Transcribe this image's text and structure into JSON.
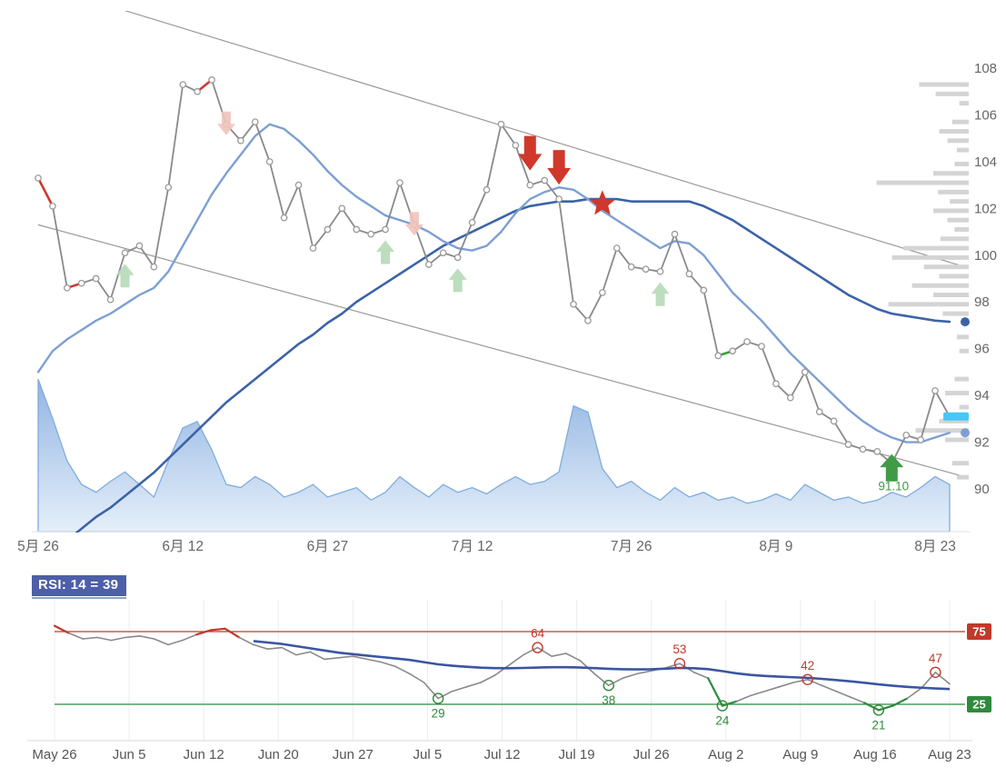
{
  "colors": {
    "price_line": "#8a8a8a",
    "fast_ma": "#7d9fd3",
    "slow_ma": "#3c63a8",
    "area_stroke": "#79a8dc",
    "area_fill_top": "#84aadf",
    "area_fill_bottom": "#e4effa",
    "up_signal": "#3f9b44",
    "down_signal": "#d0382b",
    "light_up": "#b5d9b7",
    "light_down": "#f0c3bd",
    "profile_bar": "#d4d4d4",
    "channel": "#9a9a9a",
    "axis_text": "#666666",
    "overbought": "#c0392b",
    "oversold": "#2e8b3d",
    "rsi_line": "#8a8a8a",
    "rsi_ma": "#3b55a0",
    "price_tag": "#45c8f5",
    "badge_bg": "#4d5fa8"
  },
  "chart_data": [
    {
      "type": "line",
      "name": "price-chart-with-signals",
      "title": "",
      "ylabel": "",
      "ylim": [
        88.2,
        110.3
      ],
      "y_ticks": [
        90,
        92,
        94,
        96,
        98,
        100,
        102,
        104,
        106,
        108
      ],
      "x_ticks": [
        {
          "label": "5月 26",
          "index": 0
        },
        {
          "label": "6月 12",
          "index": 10
        },
        {
          "label": "6月 27",
          "index": 20
        },
        {
          "label": "7月 12",
          "index": 30
        },
        {
          "label": "7月 26",
          "index": 41
        },
        {
          "label": "8月 9",
          "index": 51
        },
        {
          "label": "8月 23",
          "index": 62
        }
      ],
      "series": [
        {
          "name": "price",
          "marker": "circle",
          "values": [
            103.3,
            102.1,
            98.6,
            98.8,
            99.0,
            98.1,
            100.1,
            100.4,
            99.5,
            102.9,
            107.3,
            107.0,
            107.5,
            105.6,
            104.9,
            105.7,
            104.0,
            101.6,
            103.0,
            100.3,
            101.1,
            102.0,
            101.1,
            100.9,
            101.1,
            103.1,
            101.3,
            99.6,
            100.1,
            99.9,
            101.4,
            102.8,
            105.6,
            104.7,
            103.0,
            103.2,
            102.4,
            97.9,
            97.2,
            98.4,
            100.3,
            99.5,
            99.4,
            99.3,
            100.9,
            99.2,
            98.5,
            95.7,
            95.9,
            96.3,
            96.1,
            94.5,
            93.9,
            95.0,
            93.3,
            92.9,
            91.9,
            91.7,
            91.6,
            91.1,
            92.3,
            92.1,
            94.2,
            93.1
          ]
        },
        {
          "name": "ma-fast",
          "values": [
            95.0,
            95.9,
            96.4,
            96.8,
            97.2,
            97.5,
            97.9,
            98.3,
            98.6,
            99.3,
            100.4,
            101.5,
            102.6,
            103.5,
            104.3,
            105.1,
            105.6,
            105.4,
            104.9,
            104.3,
            103.6,
            103.0,
            102.5,
            102.1,
            101.7,
            101.5,
            101.3,
            101.0,
            100.6,
            100.3,
            100.2,
            100.4,
            101.0,
            101.8,
            102.4,
            102.7,
            102.9,
            102.8,
            102.4,
            101.9,
            101.5,
            101.1,
            100.7,
            100.3,
            100.6,
            100.5,
            100.0,
            99.2,
            98.4,
            97.8,
            97.2,
            96.5,
            95.8,
            95.2,
            94.6,
            94.0,
            93.4,
            92.9,
            92.5,
            92.2,
            92.0,
            92.0,
            92.2,
            92.4
          ]
        },
        {
          "name": "ma-slow",
          "values": [
            86.8,
            87.3,
            87.8,
            88.3,
            88.8,
            89.2,
            89.7,
            90.2,
            90.7,
            91.3,
            91.9,
            92.5,
            93.1,
            93.7,
            94.2,
            94.7,
            95.2,
            95.7,
            96.2,
            96.6,
            97.1,
            97.5,
            98.0,
            98.4,
            98.8,
            99.2,
            99.6,
            100.0,
            100.4,
            100.7,
            101.0,
            101.3,
            101.6,
            101.9,
            102.1,
            102.2,
            102.3,
            102.3,
            102.4,
            102.4,
            102.4,
            102.3,
            102.3,
            102.3,
            102.3,
            102.3,
            102.1,
            101.8,
            101.5,
            101.1,
            100.7,
            100.3,
            99.9,
            99.5,
            99.1,
            98.7,
            98.3,
            98.0,
            97.7,
            97.5,
            97.4,
            97.3,
            97.2,
            97.15
          ]
        }
      ],
      "area": {
        "name": "volume-area",
        "max": 100,
        "values": [
          97,
          72,
          45,
          30,
          25,
          32,
          38,
          30,
          22,
          45,
          66,
          70,
          52,
          30,
          28,
          35,
          30,
          22,
          25,
          30,
          22,
          25,
          28,
          20,
          25,
          35,
          28,
          22,
          30,
          25,
          28,
          24,
          30,
          35,
          30,
          32,
          38,
          80,
          76,
          40,
          28,
          32,
          25,
          20,
          28,
          22,
          25,
          20,
          22,
          18,
          20,
          24,
          20,
          30,
          25,
          20,
          22,
          18,
          20,
          25,
          22,
          28,
          35,
          30
        ]
      },
      "volume_profile": [
        [
          107.3,
          0.42
        ],
        [
          106.9,
          0.28
        ],
        [
          106.5,
          0.08
        ],
        [
          105.7,
          0.14
        ],
        [
          105.3,
          0.25
        ],
        [
          104.9,
          0.18
        ],
        [
          104.5,
          0.1
        ],
        [
          103.9,
          0.12
        ],
        [
          103.5,
          0.3
        ],
        [
          103.1,
          0.78
        ],
        [
          102.7,
          0.26
        ],
        [
          102.3,
          0.16
        ],
        [
          101.9,
          0.3
        ],
        [
          101.5,
          0.18
        ],
        [
          101.1,
          0.12
        ],
        [
          100.7,
          0.24
        ],
        [
          100.3,
          0.55
        ],
        [
          99.9,
          0.65
        ],
        [
          99.5,
          0.38
        ],
        [
          99.1,
          0.25
        ],
        [
          98.7,
          0.48
        ],
        [
          98.3,
          0.3
        ],
        [
          97.9,
          0.68
        ],
        [
          97.5,
          0.22
        ],
        [
          96.5,
          0.1
        ],
        [
          95.9,
          0.08
        ],
        [
          94.7,
          0.12
        ],
        [
          94.1,
          0.2
        ],
        [
          93.5,
          0.08
        ],
        [
          92.9,
          0.25
        ],
        [
          92.5,
          0.45
        ],
        [
          92.1,
          0.2
        ],
        [
          91.1,
          0.14
        ],
        [
          90.5,
          0.1
        ]
      ],
      "channel_lines": [
        [
          0,
          111.6,
          64.3,
          99.45
        ],
        [
          0,
          101.3,
          64.3,
          90.48
        ]
      ],
      "colored_segments": [
        [
          0,
          1,
          "down"
        ],
        [
          2,
          3,
          "down"
        ],
        [
          11,
          12,
          "down"
        ],
        [
          47,
          48,
          "up"
        ]
      ],
      "signals": {
        "sell": [
          {
            "index": 34
          },
          {
            "index": 36
          }
        ],
        "buy": [
          {
            "index": 59,
            "label": "91.10"
          }
        ],
        "star": [
          {
            "index": 39,
            "price": 102.2
          }
        ],
        "light": [
          {
            "index": 6,
            "dir": "up"
          },
          {
            "index": 13,
            "dir": "down"
          },
          {
            "index": 24,
            "dir": "up"
          },
          {
            "index": 26,
            "dir": "down"
          },
          {
            "index": 29,
            "dir": "up"
          },
          {
            "index": 43,
            "dir": "up"
          }
        ]
      },
      "ma_end_dots": [
        {
          "series": "ma-slow",
          "price": 97.15
        },
        {
          "series": "ma-fast",
          "price": 92.4
        }
      ],
      "price_tag": {
        "price": 93.1
      }
    },
    {
      "type": "line",
      "name": "rsi-subchart",
      "title": "RSI: 14 = 39",
      "period": 14,
      "current_value": 39,
      "ylim": [
        0,
        100
      ],
      "upper_band": {
        "value": 75,
        "label": "75"
      },
      "lower_band": {
        "value": 25,
        "label": "25"
      },
      "x_tick_labels": [
        "May 26",
        "Jun 5",
        "Jun 12",
        "Jun 20",
        "Jun 27",
        "Jul 5",
        "Jul 12",
        "Jul 19",
        "Jul 26",
        "Aug 2",
        "Aug 9",
        "Aug 16",
        "Aug 23"
      ],
      "series": [
        {
          "name": "rsi",
          "values": [
            79,
            74,
            70,
            71,
            69,
            71,
            72,
            70,
            66,
            69,
            73,
            76,
            77,
            71,
            66,
            63,
            64,
            59,
            61,
            56,
            57,
            58,
            56,
            54,
            51,
            46,
            40,
            29,
            34,
            37,
            40,
            45,
            52,
            59,
            64,
            58,
            60,
            55,
            46,
            38,
            43,
            46,
            48,
            50,
            53,
            47,
            43,
            24,
            27,
            31,
            34,
            37,
            40,
            42,
            38,
            34,
            30,
            26,
            21,
            24,
            29,
            36,
            47,
            39
          ]
        },
        {
          "name": "rsi-ma",
          "values": [
            null,
            null,
            null,
            null,
            null,
            null,
            null,
            null,
            null,
            null,
            null,
            null,
            null,
            null,
            68.5,
            67.5,
            66.5,
            65.0,
            63.5,
            62.0,
            60.5,
            59.5,
            58.5,
            57.5,
            56.5,
            55.5,
            54.0,
            52.5,
            51.5,
            50.8,
            50.2,
            49.9,
            49.8,
            50.0,
            50.3,
            50.5,
            50.5,
            50.3,
            49.9,
            49.4,
            49.1,
            49.0,
            49.1,
            49.5,
            50.0,
            49.8,
            49.2,
            47.8,
            46.3,
            45.2,
            44.5,
            44.0,
            43.6,
            43.2,
            42.5,
            41.7,
            40.8,
            39.8,
            38.7,
            37.8,
            37.0,
            36.4,
            35.9,
            35.5
          ]
        }
      ],
      "annotations": [
        {
          "index": 27,
          "value": 29,
          "label": "29",
          "type": "low"
        },
        {
          "index": 34,
          "value": 64,
          "label": "64",
          "type": "high"
        },
        {
          "index": 39,
          "value": 38,
          "label": "38",
          "type": "low"
        },
        {
          "index": 44,
          "value": 53,
          "label": "53",
          "type": "high"
        },
        {
          "index": 47,
          "value": 24,
          "label": "24",
          "type": "low"
        },
        {
          "index": 53,
          "value": 42,
          "label": "42",
          "type": "high"
        },
        {
          "index": 58,
          "value": 21,
          "label": "21",
          "type": "low"
        },
        {
          "index": 62,
          "value": 47,
          "label": "47",
          "type": "high"
        }
      ]
    }
  ]
}
